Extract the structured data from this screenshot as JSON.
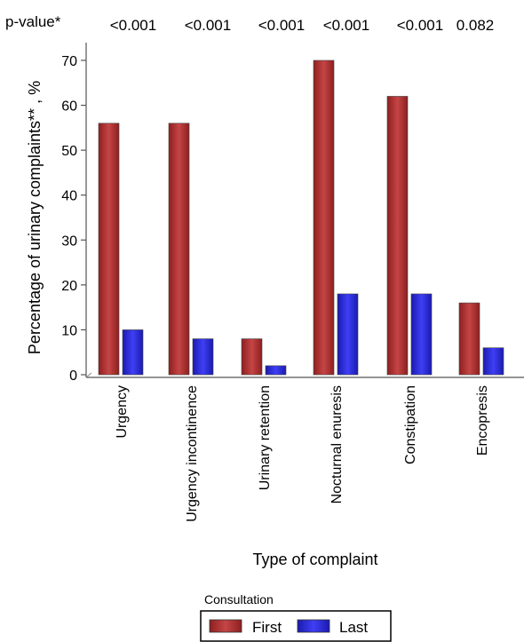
{
  "chart_data": {
    "type": "bar",
    "pvalue_label": "p-value*",
    "pvalues": [
      "<0.001",
      "<0.001",
      "<0.001",
      "<0.001",
      "<0.001",
      "0.082"
    ],
    "categories": [
      "Urgency",
      "Urgency incontinence",
      "Urinary retention",
      "Nocturnal enuresis",
      "Constipation",
      "Encopresis"
    ],
    "series": [
      {
        "name": "First",
        "values": [
          56,
          56,
          8,
          70,
          62,
          16
        ],
        "color": "#b83232"
      },
      {
        "name": "Last",
        "values": [
          10,
          8,
          2,
          18,
          18,
          6
        ],
        "color": "#2a2ae6"
      }
    ],
    "xlabel": "Type of complaint",
    "ylabel": "Percentage of urinary complaints** , %",
    "ylim": [
      0,
      70
    ],
    "yticks": [
      0,
      10,
      20,
      30,
      40,
      50,
      60,
      70
    ],
    "legend": {
      "title": "Consultation",
      "position": "bottom"
    },
    "grid": false
  }
}
